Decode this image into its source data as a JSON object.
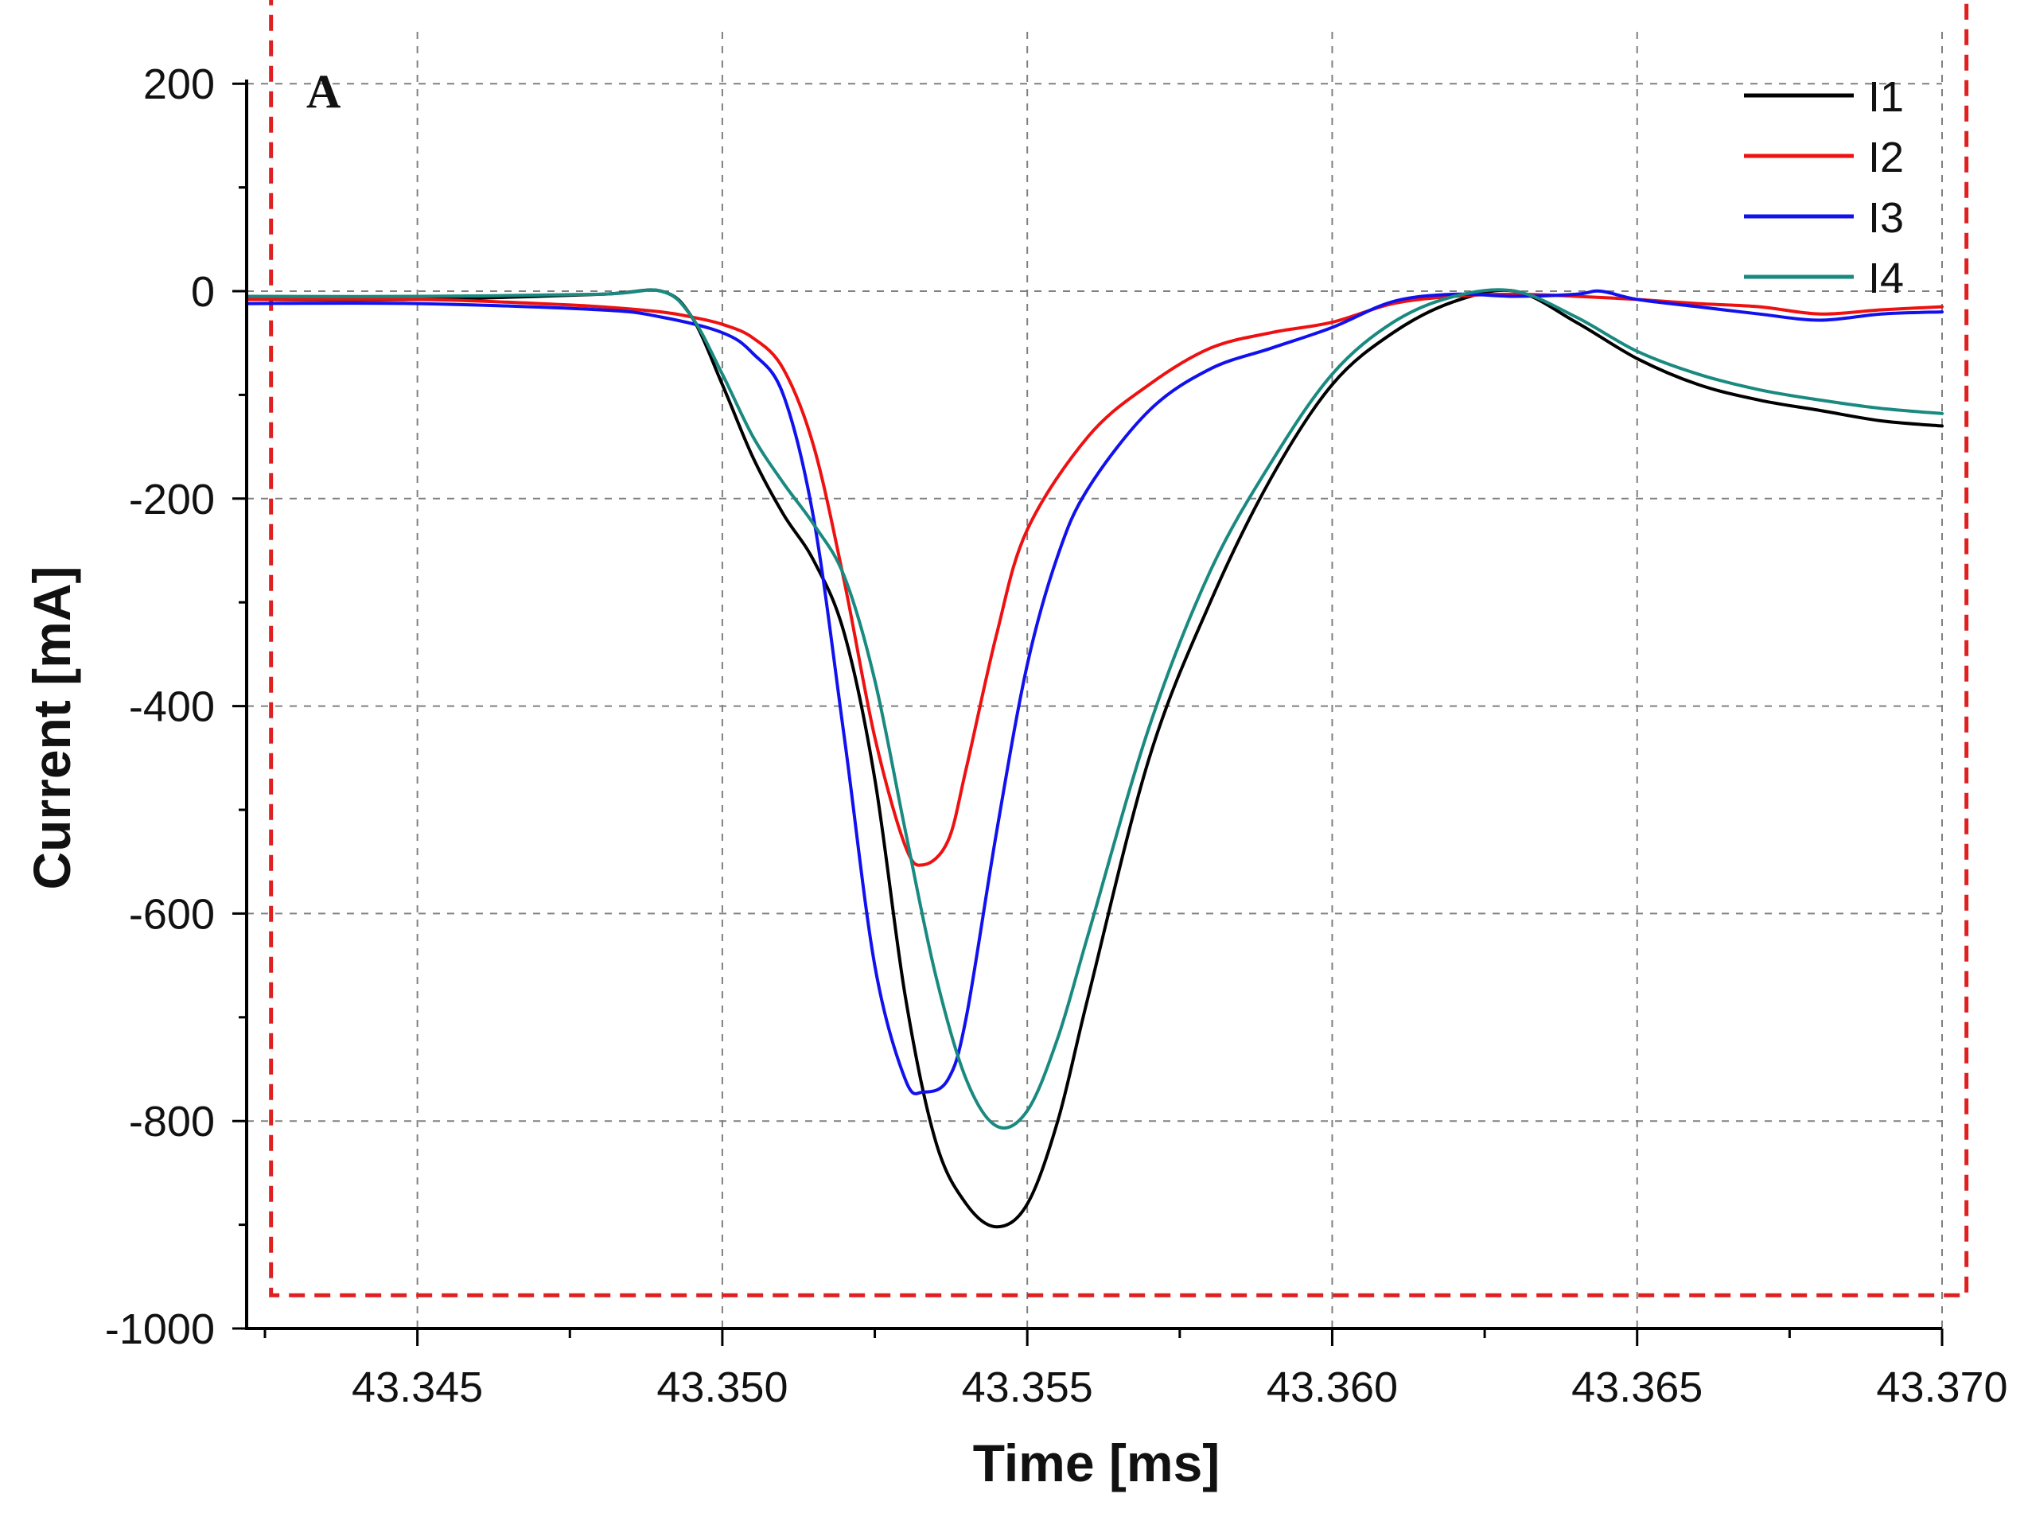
{
  "chart_data": {
    "type": "line",
    "panel_label": "A",
    "xlabel": "Time [ms]",
    "ylabel": "Current [mA]",
    "xlim": [
      43.3422,
      43.37
    ],
    "ylim": [
      -1000,
      250
    ],
    "x_ticks": [
      43.345,
      43.35,
      43.355,
      43.36,
      43.365,
      43.37
    ],
    "x_tick_labels": [
      "43.345",
      "43.350",
      "43.355",
      "43.360",
      "43.365",
      "43.370"
    ],
    "y_ticks": [
      200,
      0,
      -200,
      -400,
      -600,
      -800,
      -1000
    ],
    "y_tick_labels": [
      "200",
      "0",
      "-200",
      "-400",
      "-600",
      "-800",
      "-1000"
    ],
    "grid": true,
    "legend_position": "top-right",
    "highlight_box": {
      "color": "#e02020",
      "style": "dashed",
      "x_range": [
        43.3426,
        43.3704
      ],
      "y_range": [
        -968,
        287
      ]
    },
    "series": [
      {
        "name": "I1",
        "color": "#000000",
        "x": [
          43.3422,
          43.345,
          43.348,
          43.349,
          43.3495,
          43.35,
          43.3505,
          43.351,
          43.3515,
          43.352,
          43.3525,
          43.353,
          43.3535,
          43.354,
          43.3545,
          43.355,
          43.3555,
          43.356,
          43.357,
          43.358,
          43.359,
          43.36,
          43.361,
          43.362,
          43.363,
          43.364,
          43.365,
          43.366,
          43.367,
          43.368,
          43.369,
          43.37
        ],
        "y": [
          -8,
          -8,
          -3,
          0,
          -25,
          -90,
          -160,
          -215,
          -260,
          -330,
          -470,
          -680,
          -820,
          -880,
          -902,
          -880,
          -800,
          -680,
          -450,
          -300,
          -180,
          -90,
          -40,
          -10,
          0,
          -30,
          -65,
          -90,
          -105,
          -115,
          -125,
          -130
        ]
      },
      {
        "name": "I2",
        "color": "#ee1111",
        "x": [
          43.3422,
          43.345,
          43.347,
          43.348,
          43.349,
          43.3495,
          43.35,
          43.3505,
          43.351,
          43.3515,
          43.352,
          43.3525,
          43.353,
          43.3533,
          43.3537,
          43.354,
          43.3545,
          43.355,
          43.356,
          43.357,
          43.358,
          43.359,
          43.36,
          43.361,
          43.362,
          43.363,
          43.364,
          43.365,
          43.366,
          43.367,
          43.368,
          43.369,
          43.37
        ],
        "y": [
          -8,
          -8,
          -12,
          -15,
          -20,
          -25,
          -32,
          -45,
          -75,
          -150,
          -280,
          -430,
          -535,
          -553,
          -530,
          -460,
          -330,
          -230,
          -140,
          -90,
          -55,
          -40,
          -30,
          -12,
          -5,
          -3,
          -5,
          -8,
          -12,
          -15,
          -22,
          -18,
          -15
        ]
      },
      {
        "name": "I3",
        "color": "#1111ee",
        "x": [
          43.3422,
          43.345,
          43.348,
          43.349,
          43.35,
          43.3505,
          43.351,
          43.3515,
          43.352,
          43.3525,
          43.353,
          43.3533,
          43.3537,
          43.354,
          43.3545,
          43.355,
          43.3555,
          43.356,
          43.357,
          43.358,
          43.359,
          43.36,
          43.361,
          43.362,
          43.363,
          43.364,
          43.3644,
          43.365,
          43.366,
          43.367,
          43.368,
          43.369,
          43.37
        ],
        "y": [
          -12,
          -12,
          -18,
          -25,
          -40,
          -60,
          -100,
          -220,
          -430,
          -650,
          -760,
          -772,
          -760,
          -700,
          -520,
          -360,
          -255,
          -190,
          -115,
          -75,
          -55,
          -35,
          -10,
          -3,
          -5,
          -3,
          0,
          -8,
          -15,
          -22,
          -28,
          -22,
          -20
        ]
      },
      {
        "name": "I4",
        "color": "#1a8a80",
        "x": [
          43.3422,
          43.345,
          43.348,
          43.349,
          43.3495,
          43.35,
          43.3505,
          43.351,
          43.3515,
          43.352,
          43.3525,
          43.353,
          43.3535,
          43.354,
          43.3545,
          43.355,
          43.3555,
          43.356,
          43.357,
          43.358,
          43.359,
          43.36,
          43.361,
          43.362,
          43.363,
          43.364,
          43.365,
          43.366,
          43.367,
          43.368,
          43.369,
          43.37
        ],
        "y": [
          -5,
          -5,
          -3,
          0,
          -25,
          -80,
          -140,
          -185,
          -225,
          -275,
          -375,
          -520,
          -660,
          -760,
          -805,
          -790,
          -720,
          -620,
          -420,
          -270,
          -165,
          -80,
          -30,
          -5,
          0,
          -25,
          -58,
          -80,
          -95,
          -105,
          -113,
          -118
        ]
      }
    ]
  }
}
